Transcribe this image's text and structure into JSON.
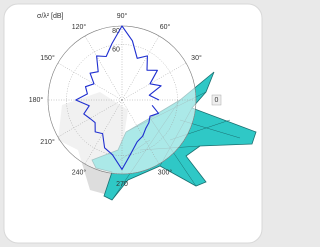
{
  "chart_data": {
    "type": "polar",
    "radial_label": "σ/λ² [dB]",
    "x": [
      0,
      10,
      20,
      30,
      40,
      50,
      60,
      70,
      80,
      90,
      100,
      110,
      120,
      130,
      140,
      150,
      160,
      170,
      180,
      190,
      200,
      210,
      220,
      230,
      240,
      250,
      260,
      270,
      280,
      290,
      300,
      310,
      320,
      330,
      340,
      350
    ],
    "series": [
      {
        "color": "#1f2fd0",
        "values": [
          40,
          30,
          45,
          35,
          50,
          42,
          55,
          48,
          65,
          80,
          62,
          50,
          55,
          40,
          45,
          35,
          42,
          38,
          50,
          36,
          44,
          40,
          38,
          45,
          42,
          55,
          60,
          75,
          58,
          48,
          45,
          40,
          38,
          35,
          42,
          33
        ]
      }
    ],
    "xticks": [
      0,
      {
        "value": 30,
        "label": "30°"
      },
      {
        "value": 60,
        "label": "60°"
      },
      {
        "value": 90,
        "label": "90°"
      },
      {
        "value": 120,
        "label": "120°"
      },
      {
        "value": 150,
        "label": "150°"
      },
      {
        "value": 180,
        "label": "180°"
      },
      {
        "value": 210,
        "label": "210°"
      },
      {
        "value": 240,
        "label": "240°"
      },
      270,
      {
        "value": 300,
        "label": "300°"
      }
    ],
    "ylim": [
      0,
      80
    ],
    "yticks": [
      60,
      80
    ],
    "grid": true
  }
}
